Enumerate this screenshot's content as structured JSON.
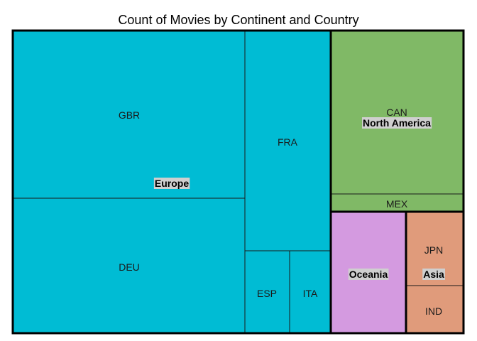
{
  "chart_data": {
    "type": "treemap",
    "title": "Count of Movies by Continent and Country",
    "groups": [
      {
        "name": "Europe",
        "color": "#00bcd4",
        "children": [
          {
            "name": "GBR",
            "value": 100
          },
          {
            "name": "DEU",
            "value": 78
          },
          {
            "name": "FRA",
            "value": 57
          },
          {
            "name": "ESP",
            "value": 15
          },
          {
            "name": "ITA",
            "value": 15
          }
        ]
      },
      {
        "name": "North America",
        "color": "#80b966",
        "children": [
          {
            "name": "CAN",
            "value": 60
          },
          {
            "name": "MEX",
            "value": 6
          }
        ]
      },
      {
        "name": "Oceania",
        "color": "#d49ae0",
        "children": []
      },
      {
        "name": "Asia",
        "color": "#e09b7b",
        "children": [
          {
            "name": "JPN",
            "value": 17
          },
          {
            "name": "IND",
            "value": 11
          }
        ]
      }
    ]
  }
}
